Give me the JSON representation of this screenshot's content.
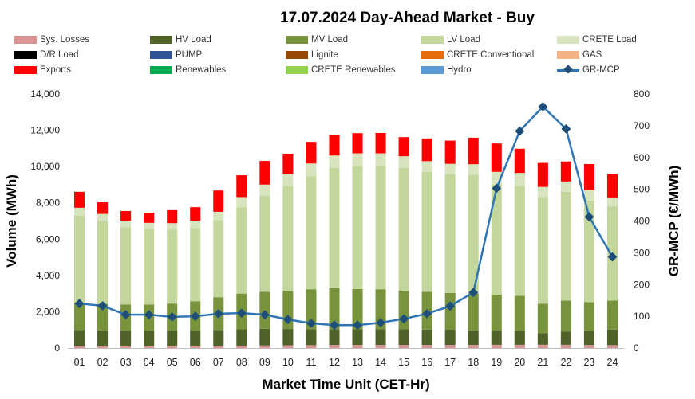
{
  "chart_data": {
    "type": "bar",
    "title": "17.07.2024  Day-Ahead Market - Buy",
    "xlabel": "Market Time Unit (CET-Hr)",
    "ylabel": "Volume (MWh)",
    "y2label": "GR-MCP (€/MWh)",
    "ylim": [
      0,
      14000
    ],
    "y2lim": [
      0,
      800
    ],
    "yticks": [
      "0",
      "2,000",
      "4,000",
      "6,000",
      "8,000",
      "10,000",
      "12,000",
      "14,000"
    ],
    "y2ticks": [
      "0",
      "100",
      "200",
      "300",
      "400",
      "500",
      "600",
      "700",
      "800"
    ],
    "categories": [
      "01",
      "02",
      "03",
      "04",
      "05",
      "06",
      "07",
      "08",
      "09",
      "10",
      "11",
      "12",
      "13",
      "14",
      "15",
      "16",
      "17",
      "18",
      "19",
      "20",
      "21",
      "22",
      "23",
      "24"
    ],
    "legend": [
      {
        "name": "Sys. Losses",
        "color": "#D99594"
      },
      {
        "name": "HV Load",
        "color": "#4F6228"
      },
      {
        "name": "MV Load",
        "color": "#77933C"
      },
      {
        "name": "LV Load",
        "color": "#C3D69B"
      },
      {
        "name": "CRETE Load",
        "color": "#D7E4BD"
      },
      {
        "name": "D/R Load",
        "color": "#000000"
      },
      {
        "name": "PUMP",
        "color": "#2F5597"
      },
      {
        "name": "Lignite",
        "color": "#974706"
      },
      {
        "name": "CRETE Conventional",
        "color": "#E46C0A"
      },
      {
        "name": "GAS",
        "color": "#F4B183"
      },
      {
        "name": "Exports",
        "color": "#FF0000"
      },
      {
        "name": "Renewables",
        "color": "#00B050"
      },
      {
        "name": "CRETE Renewables",
        "color": "#92D050"
      },
      {
        "name": "Hydro",
        "color": "#5B9BD5"
      },
      {
        "name": "GR-MCP",
        "color": "#2E75B6"
      }
    ],
    "series": [
      {
        "name": "Sys. Losses",
        "color": "#D99594",
        "values": [
          130,
          120,
          110,
          110,
          110,
          110,
          120,
          130,
          140,
          150,
          160,
          170,
          170,
          170,
          170,
          170,
          170,
          170,
          180,
          180,
          180,
          180,
          170,
          160
        ]
      },
      {
        "name": "HV Load",
        "color": "#4F6228",
        "values": [
          870,
          860,
          840,
          840,
          840,
          850,
          880,
          900,
          920,
          900,
          880,
          870,
          860,
          860,
          860,
          850,
          840,
          790,
          780,
          760,
          630,
          720,
          760,
          860
        ]
      },
      {
        "name": "MV Load",
        "color": "#77933C",
        "values": [
          1500,
          1450,
          1450,
          1450,
          1500,
          1620,
          1800,
          1970,
          2040,
          2110,
          2200,
          2260,
          2220,
          2210,
          2140,
          2080,
          2020,
          2050,
          1990,
          1940,
          1630,
          1710,
          1600,
          1600
        ]
      },
      {
        "name": "LV Load",
        "color": "#C3D69B",
        "values": [
          4800,
          4570,
          4250,
          4150,
          4080,
          4030,
          4250,
          4750,
          5300,
          5780,
          6220,
          6620,
          6790,
          6810,
          6750,
          6600,
          6550,
          6540,
          6050,
          6050,
          5880,
          6000,
          5600,
          5200
        ]
      },
      {
        "name": "CRETE Load",
        "color": "#D7E4BD",
        "values": [
          430,
          390,
          360,
          350,
          350,
          400,
          460,
          570,
          610,
          670,
          710,
          690,
          690,
          680,
          650,
          600,
          570,
          580,
          710,
          720,
          560,
          570,
          560,
          480
        ]
      },
      {
        "name": "Exports",
        "color": "#FF0000",
        "values": [
          880,
          640,
          540,
          560,
          720,
          750,
          1170,
          1200,
          1300,
          1100,
          1190,
          1140,
          1110,
          1120,
          1050,
          1250,
          1280,
          1460,
          1560,
          1330,
          1320,
          1100,
          1450,
          1280
        ]
      }
    ],
    "gr_mcp": [
      140,
      133,
      105,
      105,
      98,
      100,
      108,
      110,
      105,
      90,
      78,
      72,
      72,
      80,
      92,
      108,
      132,
      175,
      503,
      683,
      760,
      690,
      413,
      287
    ]
  }
}
